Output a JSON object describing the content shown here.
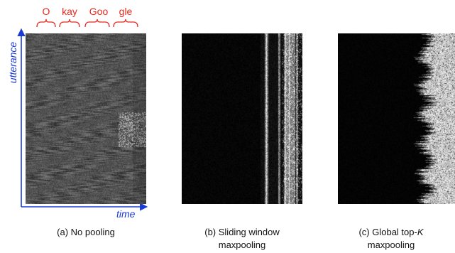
{
  "syllables": [
    "O",
    "kay",
    "Goo",
    "gle"
  ],
  "axes": {
    "y_label": "utterance",
    "x_label": "time"
  },
  "panels": [
    {
      "caption_pre": "(a) No pooling",
      "caption_k": "",
      "caption_line2": ""
    },
    {
      "caption_pre": "(b) Sliding window",
      "caption_k": "",
      "caption_line2": "maxpooling"
    },
    {
      "caption_pre": "(c) Global top-",
      "caption_k": "K",
      "caption_line2": "maxpooling"
    }
  ],
  "colors": {
    "syllable": "#e8271e",
    "axis": "#1a3bd6"
  }
}
